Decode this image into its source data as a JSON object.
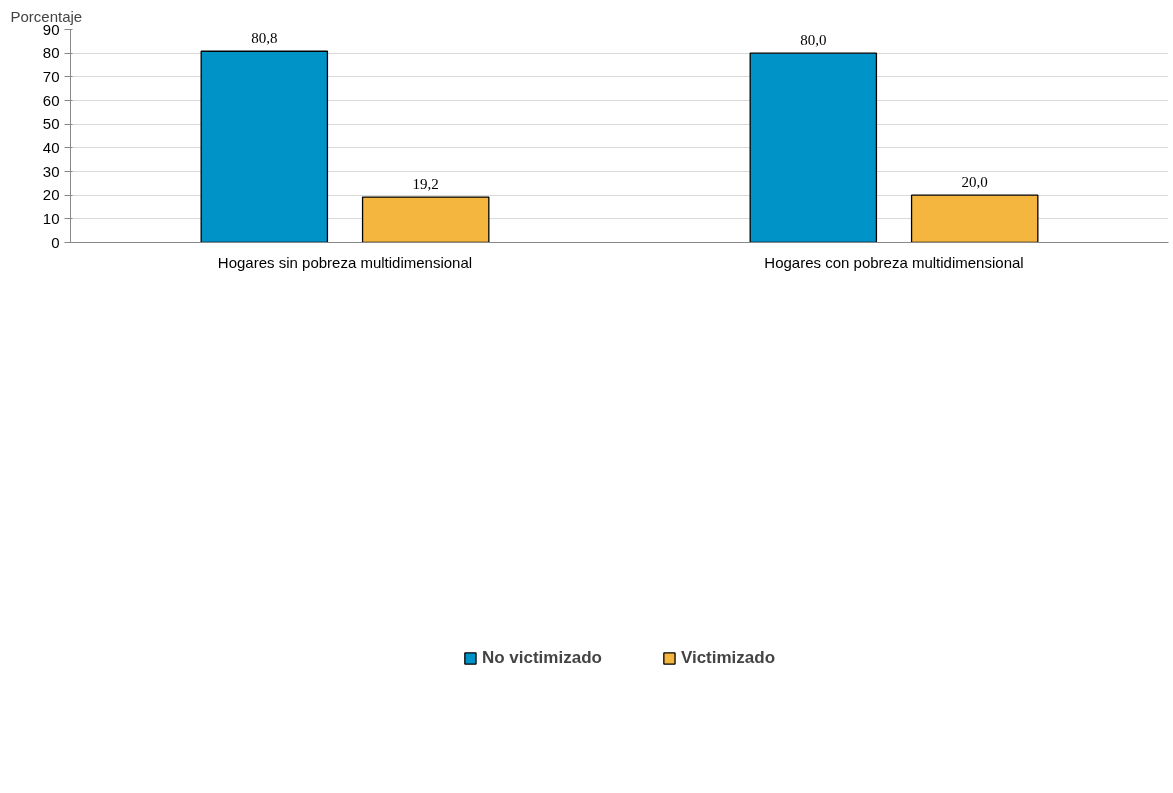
{
  "chart_data": {
    "type": "bar",
    "ylabel": "Porcentaje",
    "categories": [
      "Hogares sin pobreza multidimensional",
      "Hogares con pobreza multidimensional"
    ],
    "series": [
      {
        "name": "No victimizado",
        "color": "#0093c8",
        "values": [
          80.8,
          80.0
        ],
        "value_labels": [
          "80,8",
          "80,0"
        ]
      },
      {
        "name": "Victimizado",
        "color": "#f4b63f",
        "values": [
          19.2,
          20.0
        ],
        "value_labels": [
          "19,2",
          "20,0"
        ]
      }
    ],
    "ylim": [
      0,
      90
    ],
    "yticks": [
      0,
      10,
      20,
      30,
      40,
      50,
      60,
      70,
      80,
      90
    ],
    "grid": "y",
    "legend": "bottom"
  }
}
